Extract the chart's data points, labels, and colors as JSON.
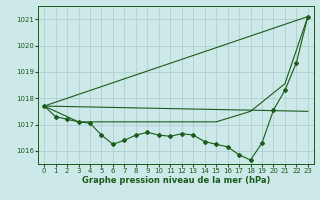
{
  "background_color": "#cce8e8",
  "plot_bg_color": "#cce8e8",
  "line_color": "#1a5c1a",
  "grid_color": "#aacccc",
  "xlabel": "Graphe pression niveau de la mer (hPa)",
  "xlabel_fontsize": 6.0,
  "ylim": [
    1015.5,
    1021.5
  ],
  "yticks": [
    1016,
    1017,
    1018,
    1019,
    1020,
    1021
  ],
  "xlim": [
    -0.5,
    23.5
  ],
  "xticks": [
    0,
    1,
    2,
    3,
    4,
    5,
    6,
    7,
    8,
    9,
    10,
    11,
    12,
    13,
    14,
    15,
    16,
    17,
    18,
    19,
    20,
    21,
    22,
    23
  ],
  "tick_labelsize": 5,
  "series_main": {
    "x": [
      0,
      1,
      2,
      3,
      4,
      5,
      6,
      7,
      8,
      9,
      10,
      11,
      12,
      13,
      14,
      15,
      16,
      17,
      18,
      19,
      20,
      21,
      22,
      23
    ],
    "y": [
      1017.7,
      1017.3,
      1017.2,
      1017.1,
      1017.05,
      1016.6,
      1016.25,
      1016.4,
      1016.6,
      1016.7,
      1016.6,
      1016.55,
      1016.65,
      1016.6,
      1016.35,
      1016.25,
      1016.15,
      1015.85,
      1015.65,
      1016.3,
      1017.55,
      1018.3,
      1019.35,
      1021.1
    ],
    "marker": "D",
    "markersize": 2.0,
    "linewidth": 0.8
  },
  "series_extra": [
    {
      "x": [
        0,
        23
      ],
      "y": [
        1017.7,
        1017.5
      ],
      "linewidth": 0.8
    },
    {
      "x": [
        0,
        23
      ],
      "y": [
        1017.7,
        1021.1
      ],
      "linewidth": 0.8
    },
    {
      "x": [
        0,
        3,
        6,
        9,
        12,
        15,
        18,
        21,
        23
      ],
      "y": [
        1017.7,
        1017.1,
        1017.1,
        1017.1,
        1017.1,
        1017.1,
        1017.5,
        1018.55,
        1021.1
      ],
      "linewidth": 0.8
    }
  ]
}
